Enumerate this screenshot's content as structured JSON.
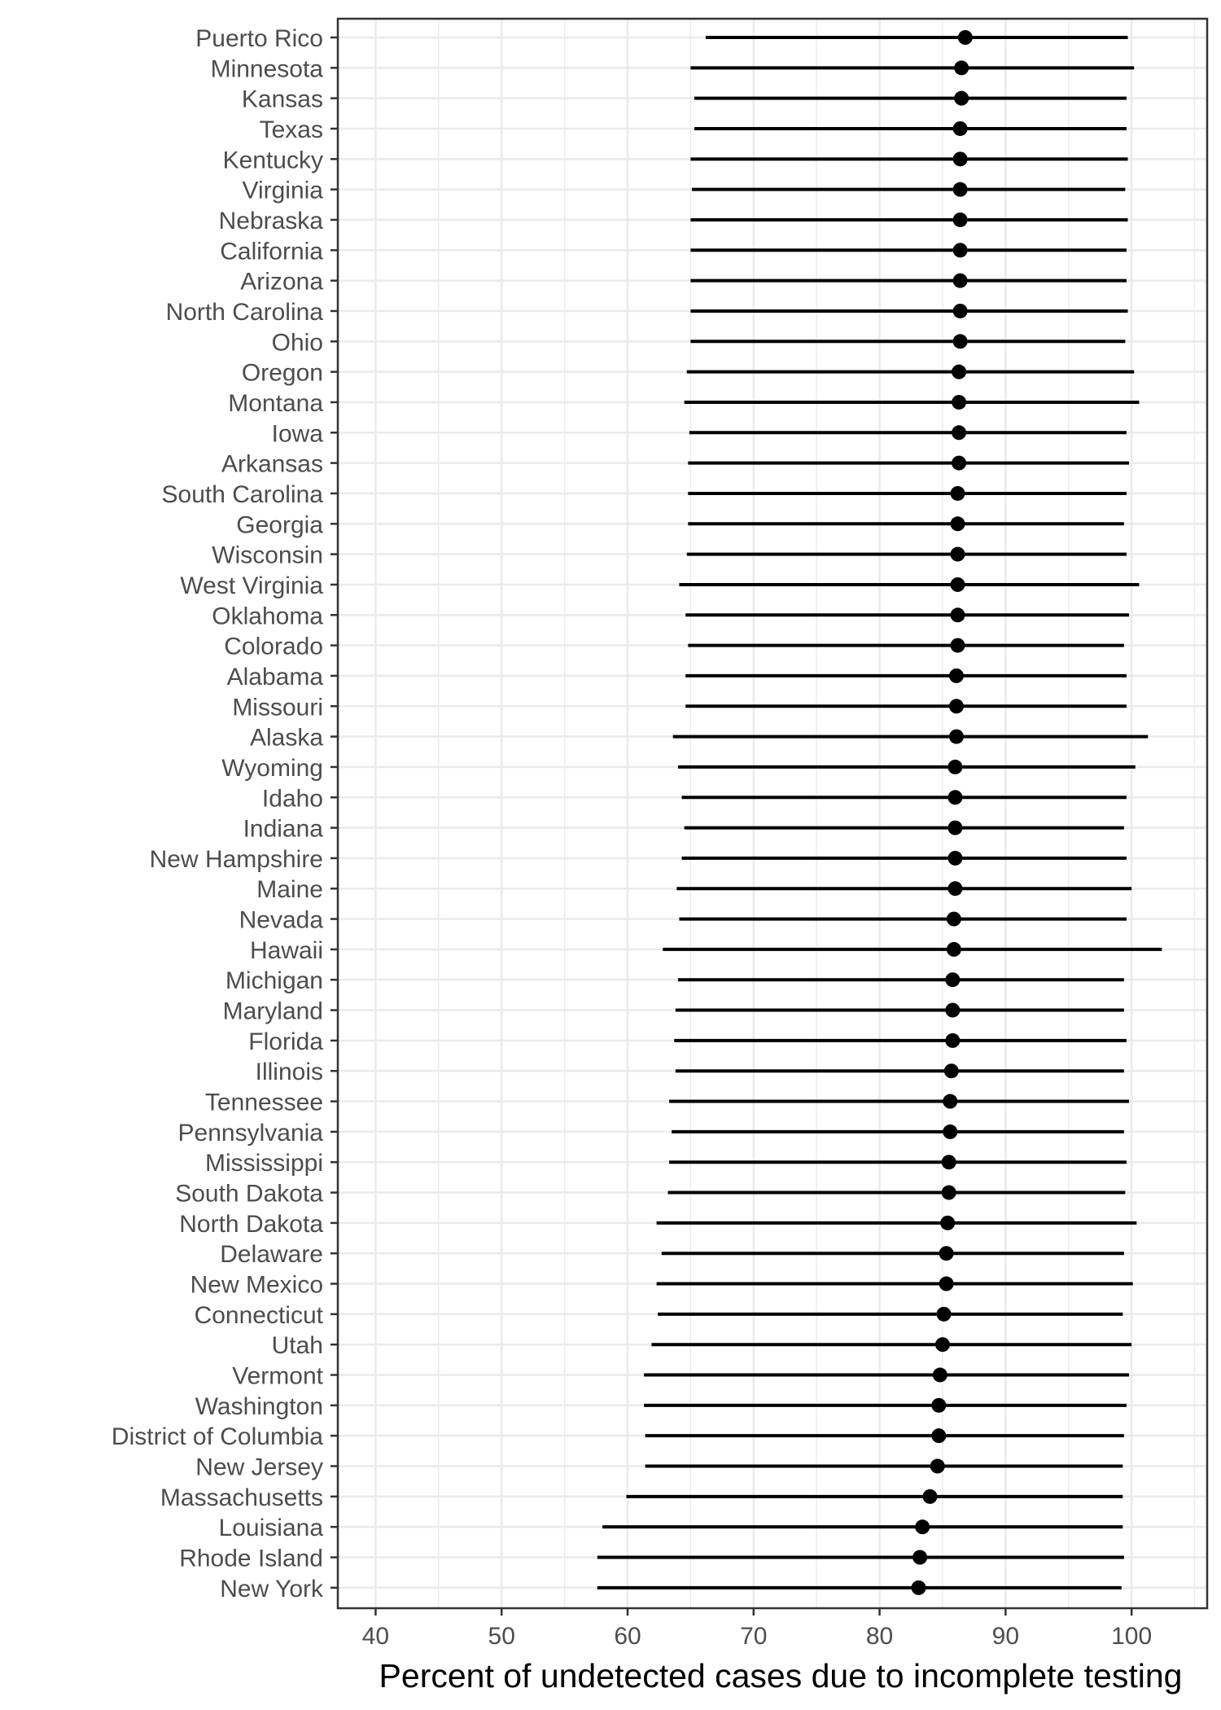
{
  "chart_data": {
    "type": "dot-range",
    "title": "",
    "xlabel": "Percent of undetected cases due to incomplete testing",
    "ylabel": "",
    "xlim": [
      37,
      106
    ],
    "x_ticks": [
      40,
      50,
      60,
      70,
      80,
      90,
      100
    ],
    "grid": true,
    "legend": "none",
    "colors": {
      "point": "#000000",
      "range": "#000000",
      "grid": "#ebebeb",
      "panel_border": "#333333",
      "tick_label": "#4d4d4d"
    },
    "categories": [
      "Puerto Rico",
      "Minnesota",
      "Kansas",
      "Texas",
      "Kentucky",
      "Virginia",
      "Nebraska",
      "California",
      "Arizona",
      "North Carolina",
      "Ohio",
      "Oregon",
      "Montana",
      "Iowa",
      "Arkansas",
      "South Carolina",
      "Georgia",
      "Wisconsin",
      "West Virginia",
      "Oklahoma",
      "Colorado",
      "Alabama",
      "Missouri",
      "Alaska",
      "Wyoming",
      "Idaho",
      "Indiana",
      "New Hampshire",
      "Maine",
      "Nevada",
      "Hawaii",
      "Michigan",
      "Maryland",
      "Florida",
      "Illinois",
      "Tennessee",
      "Pennsylvania",
      "Mississippi",
      "South Dakota",
      "North Dakota",
      "Delaware",
      "New Mexico",
      "Connecticut",
      "Utah",
      "Vermont",
      "Washington",
      "District of Columbia",
      "New Jersey",
      "Massachusetts",
      "Louisiana",
      "Rhode Island",
      "New York"
    ],
    "estimate": [
      86.8,
      86.5,
      86.5,
      86.4,
      86.4,
      86.4,
      86.4,
      86.4,
      86.4,
      86.4,
      86.4,
      86.3,
      86.3,
      86.3,
      86.3,
      86.2,
      86.2,
      86.2,
      86.2,
      86.2,
      86.2,
      86.1,
      86.1,
      86.1,
      86.0,
      86.0,
      86.0,
      86.0,
      86.0,
      85.9,
      85.9,
      85.8,
      85.8,
      85.8,
      85.7,
      85.6,
      85.6,
      85.5,
      85.5,
      85.4,
      85.3,
      85.3,
      85.1,
      85.0,
      84.8,
      84.7,
      84.7,
      84.6,
      84.0,
      83.4,
      83.2,
      83.1
    ],
    "lower": [
      66.2,
      65.0,
      65.3,
      65.3,
      65.0,
      65.1,
      65.0,
      65.0,
      65.0,
      65.0,
      65.0,
      64.7,
      64.5,
      64.9,
      64.8,
      64.8,
      64.8,
      64.7,
      64.1,
      64.6,
      64.8,
      64.6,
      64.6,
      63.6,
      64.0,
      64.3,
      64.5,
      64.3,
      63.9,
      64.1,
      62.8,
      64.0,
      63.8,
      63.7,
      63.8,
      63.3,
      63.5,
      63.3,
      63.2,
      62.3,
      62.7,
      62.3,
      62.4,
      61.9,
      61.3,
      61.3,
      61.4,
      61.4,
      59.9,
      58.0,
      57.6,
      57.6
    ],
    "upper": [
      99.7,
      100.2,
      99.6,
      99.6,
      99.7,
      99.5,
      99.7,
      99.6,
      99.6,
      99.7,
      99.5,
      100.2,
      100.6,
      99.6,
      99.8,
      99.6,
      99.4,
      99.6,
      100.6,
      99.8,
      99.4,
      99.6,
      99.6,
      101.3,
      100.3,
      99.6,
      99.4,
      99.6,
      100.0,
      99.6,
      102.4,
      99.4,
      99.4,
      99.6,
      99.4,
      99.8,
      99.4,
      99.6,
      99.5,
      100.4,
      99.4,
      100.1,
      99.3,
      100.0,
      99.8,
      99.6,
      99.4,
      99.3,
      99.3,
      99.3,
      99.4,
      99.2
    ]
  }
}
